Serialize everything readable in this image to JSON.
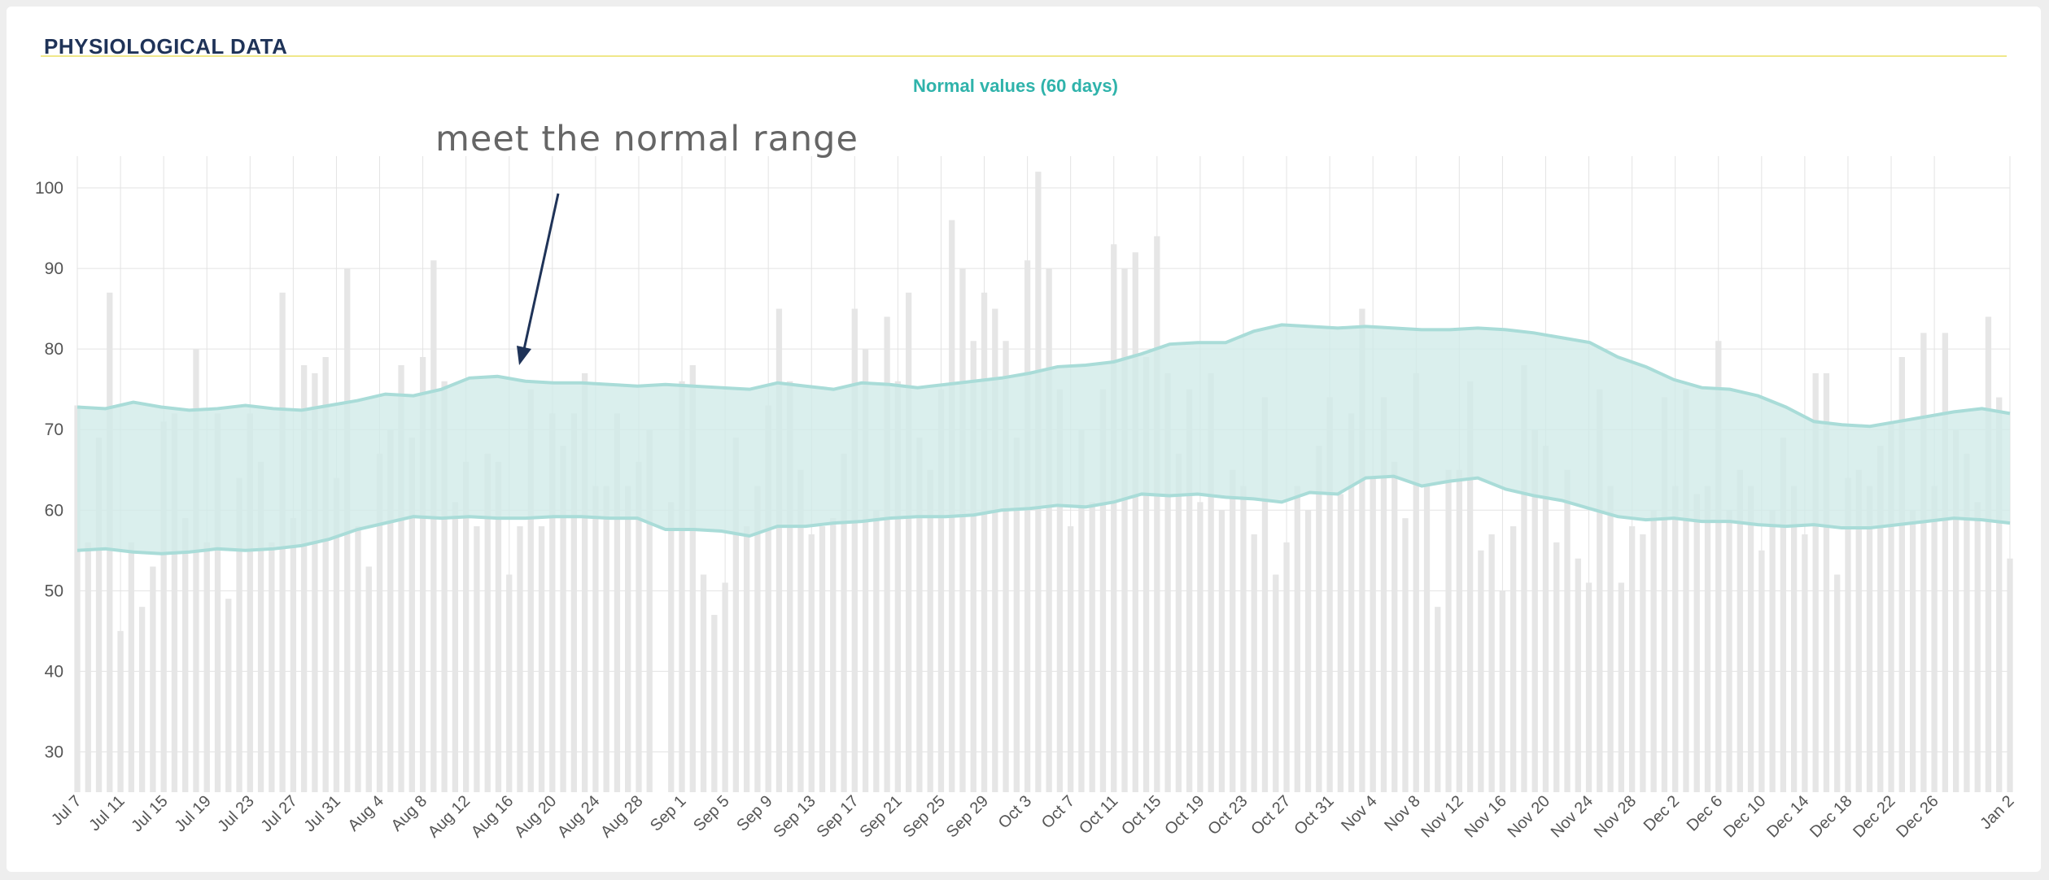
{
  "header": {
    "title": "PHYSIOLOGICAL DATA"
  },
  "colors": {
    "band_fill": "#cfeae8",
    "band_line": "#a9dcd8",
    "bar": "#e6e6e6",
    "grid": "#e3e3e3",
    "subtitle": "#2fb3ab",
    "title": "#1f3358",
    "rule": "#f0e78a",
    "arrow": "#1f3358"
  },
  "chart_data": {
    "type": "bar",
    "title": "Normal values (60 days)",
    "xlabel": "",
    "ylabel": "",
    "ylim": [
      25,
      104
    ],
    "grid": true,
    "yticks": [
      30,
      40,
      50,
      60,
      70,
      80,
      90,
      100
    ],
    "start_date": "2023-07-07",
    "x_tick_labels": [
      "Jul 7",
      "Jul 11",
      "Jul 15",
      "Jul 19",
      "Jul 23",
      "Jul 27",
      "Jul 31",
      "Aug 4",
      "Aug 8",
      "Aug 12",
      "Aug 16",
      "Aug 20",
      "Aug 24",
      "Aug 28",
      "Sep 1",
      "Sep 5",
      "Sep 9",
      "Sep 13",
      "Sep 17",
      "Sep 21",
      "Sep 25",
      "Sep 29",
      "Oct 3",
      "Oct 7",
      "Oct 11",
      "Oct 15",
      "Oct 19",
      "Oct 23",
      "Oct 27",
      "Oct 31",
      "Nov 4",
      "Nov 8",
      "Nov 12",
      "Nov 16",
      "Nov 20",
      "Nov 24",
      "Nov 28",
      "Dec 2",
      "Dec 6",
      "Dec 10",
      "Dec 14",
      "Dec 18",
      "Dec 22",
      "Dec 26",
      "Jan 2"
    ],
    "values": [
      73,
      56,
      69,
      87,
      45,
      56,
      48,
      53,
      71,
      72,
      59,
      80,
      56,
      72,
      49,
      64,
      72,
      66,
      56,
      87,
      59,
      78,
      77,
      79,
      64,
      90,
      58,
      53,
      67,
      70,
      78,
      69,
      79,
      91,
      76,
      61,
      66,
      58,
      67,
      66,
      52,
      58,
      75,
      58,
      72,
      68,
      72,
      77,
      63,
      63,
      72,
      63,
      66,
      70,
      25,
      61,
      76,
      78,
      52,
      47,
      51,
      69,
      58,
      63,
      73,
      85,
      76,
      65,
      57,
      58,
      59,
      67,
      85,
      80,
      60,
      84,
      76,
      87,
      69,
      65,
      75,
      96,
      90,
      81,
      87,
      85,
      81,
      69,
      91,
      102,
      90,
      75,
      58,
      70,
      61,
      75,
      93,
      90,
      92,
      79,
      94,
      77,
      67,
      75,
      61,
      77,
      60,
      65,
      63,
      57,
      74,
      52,
      56,
      63,
      60,
      68,
      74,
      62,
      72,
      85,
      64,
      74,
      66,
      59,
      77,
      63,
      48,
      65,
      65,
      76,
      55,
      57,
      50,
      58,
      78,
      70,
      68,
      56,
      65,
      54,
      51,
      75,
      63,
      51,
      58,
      57,
      60,
      74,
      63,
      75,
      62,
      63,
      81,
      60,
      65,
      63,
      55,
      60,
      69,
      63,
      57,
      77,
      77,
      52,
      64,
      65,
      63,
      68,
      71,
      79,
      60,
      82,
      63,
      82,
      70,
      67,
      61,
      84,
      74,
      54
    ],
    "band_upper": [
      72.8,
      72.6,
      73.4,
      72.8,
      72.4,
      72.6,
      73.0,
      72.6,
      72.4,
      73.0,
      73.6,
      74.4,
      74.2,
      75.0,
      76.4,
      76.6,
      76.0,
      75.8,
      75.8,
      75.6,
      75.4,
      75.6,
      75.4,
      75.2,
      75.0,
      75.8,
      75.4,
      75.0,
      75.8,
      75.6,
      75.2,
      75.6,
      76.0,
      76.4,
      77.0,
      77.8,
      78.0,
      78.4,
      79.4,
      80.6,
      80.8,
      80.8,
      82.2,
      83.0,
      82.8,
      82.6,
      82.8,
      82.6,
      82.4,
      82.4,
      82.6,
      82.4,
      82.0,
      81.4,
      80.8,
      79.0,
      77.8,
      76.2,
      75.2,
      75.0,
      74.2,
      72.8,
      71.0,
      70.6,
      70.4,
      71.0,
      71.6,
      72.2,
      72.6,
      72.0
    ],
    "band_lower": [
      55.0,
      55.2,
      54.8,
      54.6,
      54.8,
      55.2,
      55.0,
      55.2,
      55.6,
      56.4,
      57.6,
      58.4,
      59.2,
      59.0,
      59.2,
      59.0,
      59.0,
      59.2,
      59.2,
      59.0,
      59.0,
      57.6,
      57.6,
      57.4,
      56.8,
      58.0,
      58.0,
      58.4,
      58.6,
      59.0,
      59.2,
      59.2,
      59.4,
      60.0,
      60.2,
      60.6,
      60.4,
      61.0,
      62.0,
      61.8,
      62.0,
      61.6,
      61.4,
      61.0,
      62.2,
      62.0,
      64.0,
      64.2,
      63.0,
      63.6,
      64.0,
      62.6,
      61.8,
      61.2,
      60.2,
      59.2,
      58.8,
      59.0,
      58.6,
      58.6,
      58.2,
      58.0,
      58.2,
      57.8,
      57.8,
      58.2,
      58.6,
      59.0,
      58.8,
      58.4
    ],
    "annotations": [
      {
        "text": "meet the normal range"
      }
    ]
  }
}
